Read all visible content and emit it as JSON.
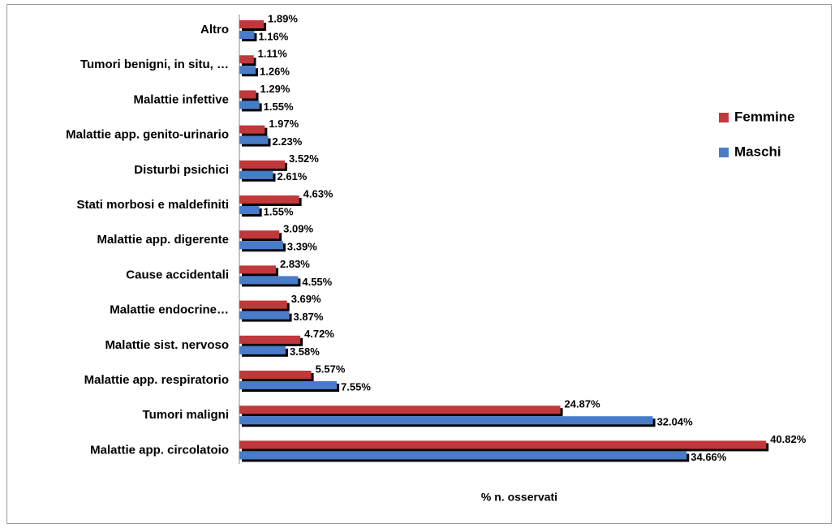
{
  "chart_data": {
    "type": "bar",
    "orientation": "horizontal",
    "x_label": "% n. osservati",
    "categories": [
      "Altro",
      "Tumori benigni, in situ, …",
      "Malattie infettive",
      "Malattie app. genito-urinario",
      "Disturbi psichici",
      "Stati morbosi e maldefiniti",
      "Malattie app. digerente",
      "Cause accidentali",
      "Malattie endocrine…",
      "Malattie sist. nervoso",
      "Malattie app. respiratorio",
      "Tumori maligni",
      "Malattie app. circolatoio"
    ],
    "series": [
      {
        "name": "Femmine",
        "color": "#c0393b",
        "values": [
          1.89,
          1.11,
          1.29,
          1.97,
          3.52,
          4.63,
          3.09,
          2.83,
          3.69,
          4.72,
          5.57,
          24.87,
          40.82
        ],
        "value_labels": [
          "1.89%",
          "1.11%",
          "1.29%",
          "1.97%",
          "3.52%",
          "4.63%",
          "3.09%",
          "2.83%",
          "3.69%",
          "4.72%",
          "5.57%",
          "24.87%",
          "40.82%"
        ]
      },
      {
        "name": "Maschi",
        "color": "#4a7bc8",
        "values": [
          1.16,
          1.26,
          1.55,
          2.23,
          2.61,
          1.55,
          3.39,
          4.55,
          3.87,
          3.58,
          7.55,
          32.04,
          34.66
        ],
        "value_labels": [
          "1.16%",
          "1.26%",
          "1.55%",
          "2.23%",
          "2.61%",
          "1.55%",
          "3.39%",
          "4.55%",
          "3.87%",
          "3.58%",
          "7.55%",
          "32.04%",
          "34.66%"
        ]
      }
    ],
    "xlim": [
      0,
      42
    ],
    "legend": "right"
  }
}
